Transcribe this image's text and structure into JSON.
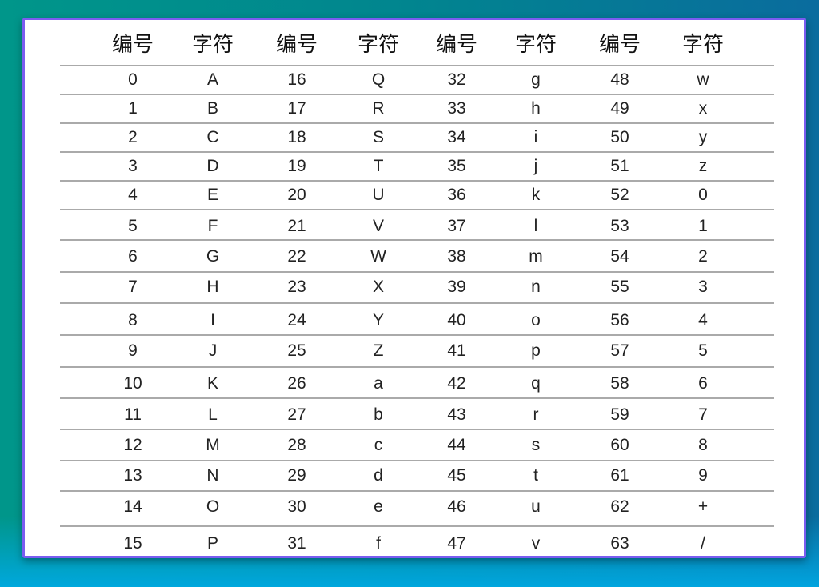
{
  "headers": [
    "编号",
    "字符",
    "编号",
    "字符",
    "编号",
    "字符",
    "编号",
    "字符"
  ],
  "rows": [
    [
      "0",
      "A",
      "16",
      "Q",
      "32",
      "g",
      "48",
      "w"
    ],
    [
      "1",
      "B",
      "17",
      "R",
      "33",
      "h",
      "49",
      "x"
    ],
    [
      "2",
      "C",
      "18",
      "S",
      "34",
      "i",
      "50",
      "y"
    ],
    [
      "3",
      "D",
      "19",
      "T",
      "35",
      "j",
      "51",
      "z"
    ],
    [
      "4",
      "E",
      "20",
      "U",
      "36",
      "k",
      "52",
      "0"
    ],
    [
      "5",
      "F",
      "21",
      "V",
      "37",
      "l",
      "53",
      "1"
    ],
    [
      "6",
      "G",
      "22",
      "W",
      "38",
      "m",
      "54",
      "2"
    ],
    [
      "7",
      "H",
      "23",
      "X",
      "39",
      "n",
      "55",
      "3"
    ],
    [
      "8",
      "I",
      "24",
      "Y",
      "40",
      "o",
      "56",
      "4"
    ],
    [
      "9",
      "J",
      "25",
      "Z",
      "41",
      "p",
      "57",
      "5"
    ],
    [
      "10",
      "K",
      "26",
      "a",
      "42",
      "q",
      "58",
      "6"
    ],
    [
      "11",
      "L",
      "27",
      "b",
      "43",
      "r",
      "59",
      "7"
    ],
    [
      "12",
      "M",
      "28",
      "c",
      "44",
      "s",
      "60",
      "8"
    ],
    [
      "13",
      "N",
      "29",
      "d",
      "45",
      "t",
      "61",
      "9"
    ],
    [
      "14",
      "O",
      "30",
      "e",
      "46",
      "u",
      "62",
      "+"
    ],
    [
      "15",
      "P",
      "31",
      "f",
      "47",
      "v",
      "63",
      "/"
    ]
  ],
  "colors": {
    "border": "#7b5cf0",
    "rule": "#aaaaaa"
  }
}
